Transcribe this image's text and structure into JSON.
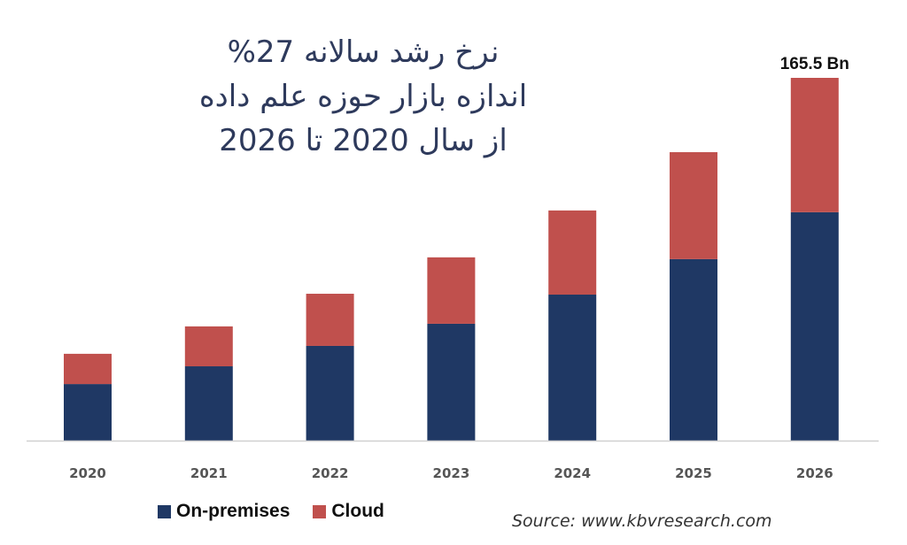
{
  "chart_data": {
    "type": "bar",
    "stacked": true,
    "title_lines": [
      "نرخ رشد سالانه 27%",
      "اندازه بازار حوزه علم داده",
      "از سال 2020 تا 2026"
    ],
    "categories": [
      "2020",
      "2021",
      "2022",
      "2023",
      "2024",
      "2025",
      "2026"
    ],
    "series": [
      {
        "name": "On-premises",
        "color": "#1f3864",
        "values": [
          25.8,
          33.9,
          43.2,
          53.3,
          66.6,
          82.8,
          104.2
        ]
      },
      {
        "name": "Cloud",
        "color": "#c0504d",
        "values": [
          13.8,
          18.2,
          23.8,
          30.3,
          38.4,
          48.8,
          61.3
        ]
      }
    ],
    "annotations": [
      {
        "category": "2026",
        "text": "165.5 Bn"
      }
    ],
    "ylim": [
      0,
      165.5
    ],
    "y_axis_visible": false,
    "grid": false,
    "legend_placement": "bottom-left",
    "xlabel": "",
    "ylabel": "",
    "source": "Source: www.kbvresearch.com"
  }
}
